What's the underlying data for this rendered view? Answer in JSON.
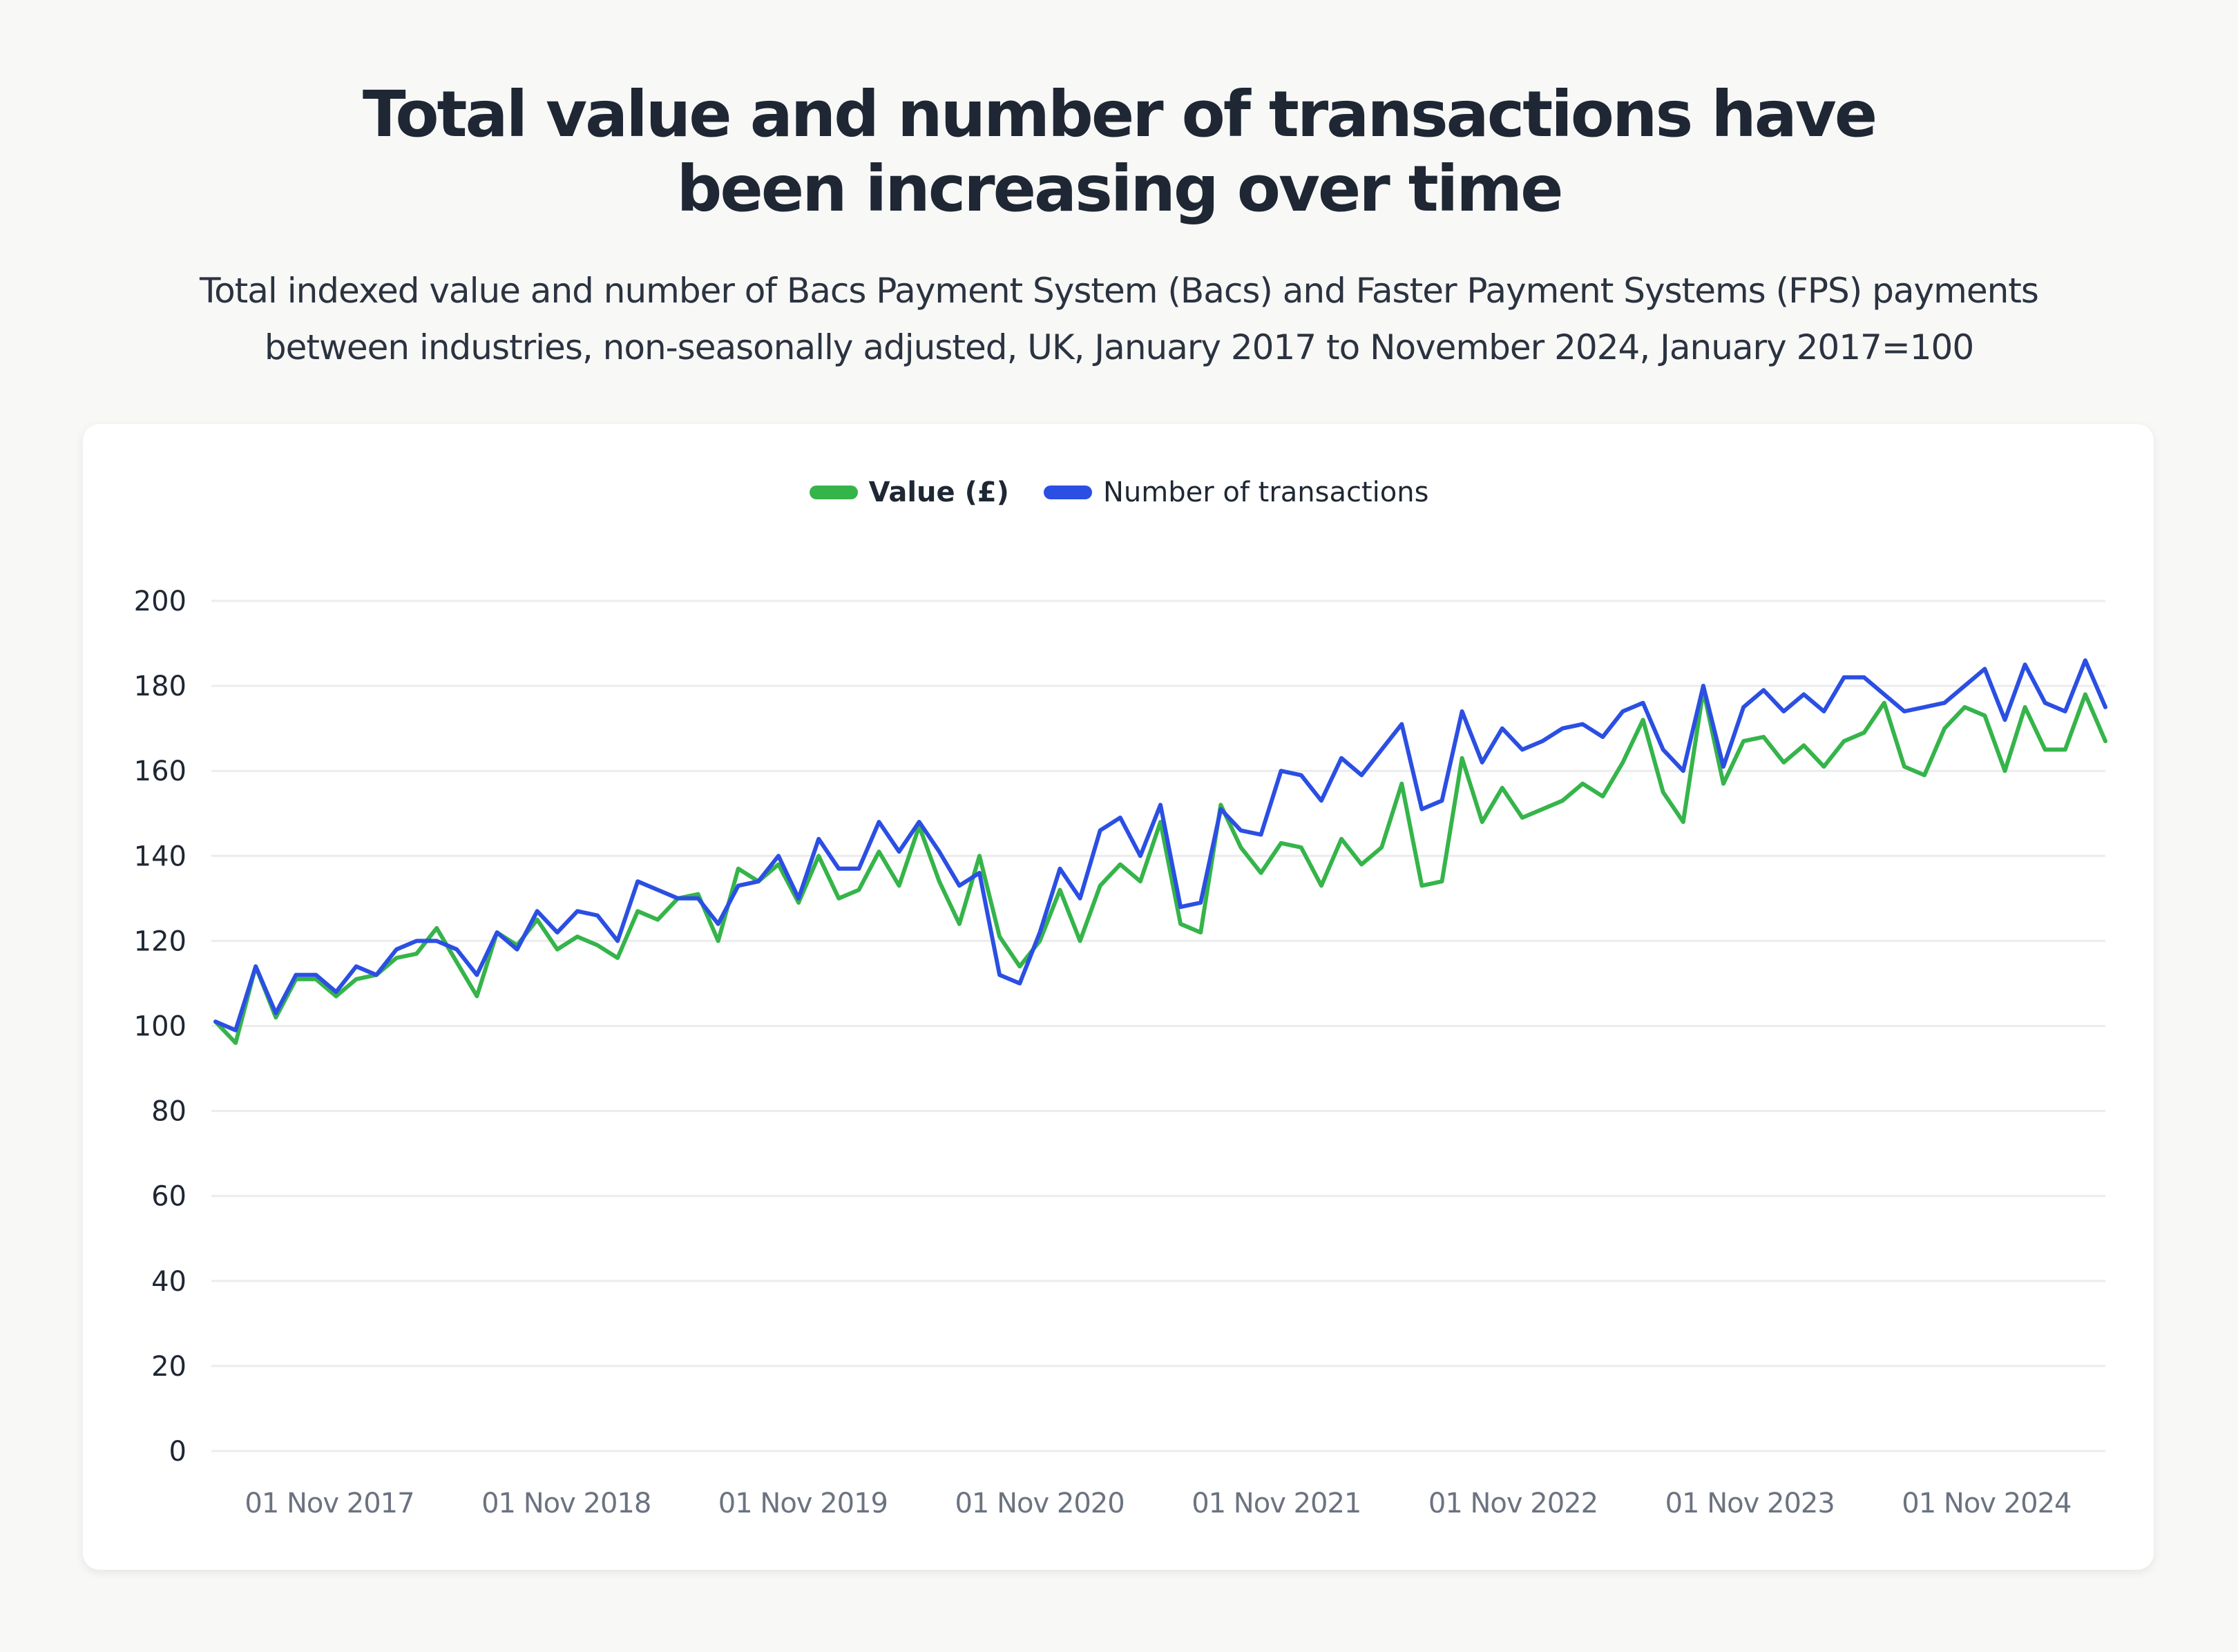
{
  "header": {
    "title_lines": [
      "Total value and number of transactions have",
      "been increasing over time"
    ],
    "subtitle_lines": [
      "Total indexed value and number of Bacs Payment System (Bacs) and Faster Payment Systems (FPS) payments",
      "between industries, non-seasonally adjusted, UK, January 2017 to November 2024, January 2017=100"
    ]
  },
  "chart_data": {
    "type": "line",
    "title": "Total value and number of transactions have been increasing over time",
    "x_start": "January 2017",
    "x_end": "November 2024",
    "x_frequency": "monthly",
    "x_tick_labels": [
      "01 Nov 2017",
      "01 Nov 2018",
      "01 Nov 2019",
      "01 Nov 2020",
      "01 Nov 2021",
      "01 Nov 2022",
      "01 Nov 2023",
      "01 Nov 2024"
    ],
    "y_ticks": [
      0,
      20,
      40,
      60,
      80,
      100,
      120,
      140,
      160,
      180,
      200
    ],
    "ylim": [
      0,
      200
    ],
    "grid": "horizontal",
    "legend_position": "top-center",
    "series": [
      {
        "name": "Value (£)",
        "color": "#35b44a",
        "values": [
          101,
          96,
          114,
          102,
          111,
          111,
          107,
          111,
          112,
          116,
          117,
          123,
          115,
          107,
          122,
          119,
          125,
          118,
          121,
          119,
          116,
          127,
          125,
          130,
          131,
          120,
          137,
          134,
          138,
          129,
          140,
          130,
          132,
          141,
          133,
          147,
          134,
          124,
          140,
          121,
          114,
          120,
          132,
          120,
          133,
          138,
          134,
          148,
          124,
          122,
          152,
          142,
          136,
          143,
          142,
          133,
          144,
          138,
          142,
          157,
          133,
          134,
          163,
          148,
          156,
          149,
          151,
          153,
          157,
          154,
          162,
          172,
          155,
          148,
          179,
          157,
          167,
          168,
          162,
          166,
          161,
          167,
          169,
          176,
          161,
          159,
          170,
          175,
          173,
          160,
          175,
          165,
          165,
          178,
          167
        ]
      },
      {
        "name": "Number of transactions",
        "color": "#2b4fe3",
        "values": [
          101,
          99,
          114,
          103,
          112,
          112,
          108,
          114,
          112,
          118,
          120,
          120,
          118,
          112,
          122,
          118,
          127,
          122,
          127,
          126,
          120,
          134,
          132,
          130,
          130,
          124,
          133,
          134,
          140,
          130,
          144,
          137,
          137,
          148,
          141,
          148,
          141,
          133,
          136,
          112,
          110,
          122,
          137,
          130,
          146,
          149,
          140,
          152,
          128,
          129,
          151,
          146,
          145,
          160,
          159,
          153,
          163,
          159,
          165,
          171,
          151,
          153,
          174,
          162,
          170,
          165,
          167,
          170,
          171,
          168,
          174,
          176,
          165,
          160,
          180,
          161,
          175,
          179,
          174,
          178,
          174,
          182,
          182,
          178,
          174,
          175,
          176,
          180,
          184,
          172,
          185,
          176,
          174,
          186,
          175
        ]
      }
    ]
  }
}
